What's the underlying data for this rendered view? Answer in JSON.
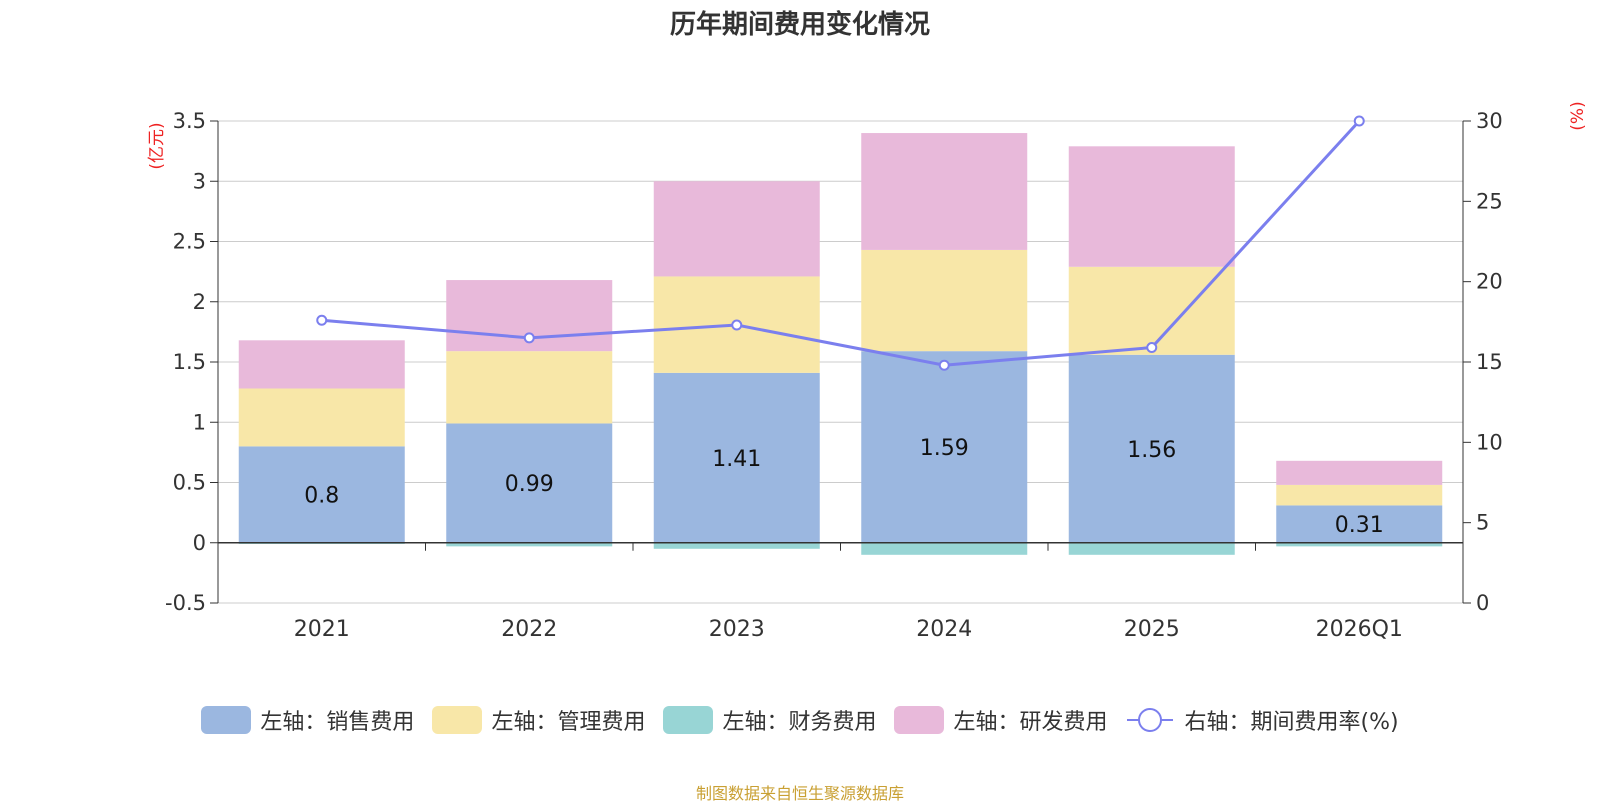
{
  "chart_data": {
    "type": "bar",
    "title": "历年期间费用变化情况",
    "categories": [
      "2021",
      "2022",
      "2023",
      "2024",
      "2025",
      "2026Q1"
    ],
    "left_axis": {
      "unit": "(亿元)",
      "ylim": [
        -0.5,
        3.5
      ],
      "ticks": [
        -0.5,
        0,
        0.5,
        1,
        1.5,
        2,
        2.5,
        3,
        3.5
      ],
      "tick_labels": [
        "-0.5",
        "0",
        "0.5",
        "1",
        "1.5",
        "2",
        "2.5",
        "3",
        "3.5"
      ]
    },
    "right_axis": {
      "unit": "(%)",
      "ylim": [
        0,
        30
      ],
      "ticks": [
        0,
        5,
        10,
        15,
        20,
        25,
        30
      ],
      "tick_labels": [
        "0",
        "5",
        "10",
        "15",
        "20",
        "25",
        "30"
      ]
    },
    "series": [
      {
        "name": "左轴：销售费用",
        "type": "bar",
        "axis": "left",
        "color": "#9bb7e0",
        "values": [
          0.8,
          0.99,
          1.41,
          1.59,
          1.56,
          0.31
        ],
        "labels": [
          "0.8",
          "0.99",
          "1.41",
          "1.59",
          "1.56",
          "0.31"
        ]
      },
      {
        "name": "左轴：管理费用",
        "type": "bar",
        "axis": "left",
        "color": "#f8e7a8",
        "values": [
          0.48,
          0.6,
          0.8,
          0.84,
          0.73,
          0.17
        ]
      },
      {
        "name": "左轴：财务费用",
        "type": "bar",
        "axis": "left",
        "color": "#98d5d5",
        "values": [
          -0.01,
          -0.03,
          -0.05,
          -0.1,
          -0.1,
          -0.03
        ]
      },
      {
        "name": "左轴：研发费用",
        "type": "bar",
        "axis": "left",
        "color": "#e8b9da",
        "values": [
          0.4,
          0.59,
          0.79,
          0.97,
          1.0,
          0.2
        ]
      },
      {
        "name": "右轴：期间费用率(%)",
        "type": "line",
        "axis": "right",
        "color": "#7b7fee",
        "values": [
          17.6,
          16.5,
          17.3,
          14.8,
          15.9,
          30.0
        ]
      }
    ]
  },
  "source": {
    "text": "制图数据来自恒生聚源数据库",
    "color": "#c9a033"
  }
}
